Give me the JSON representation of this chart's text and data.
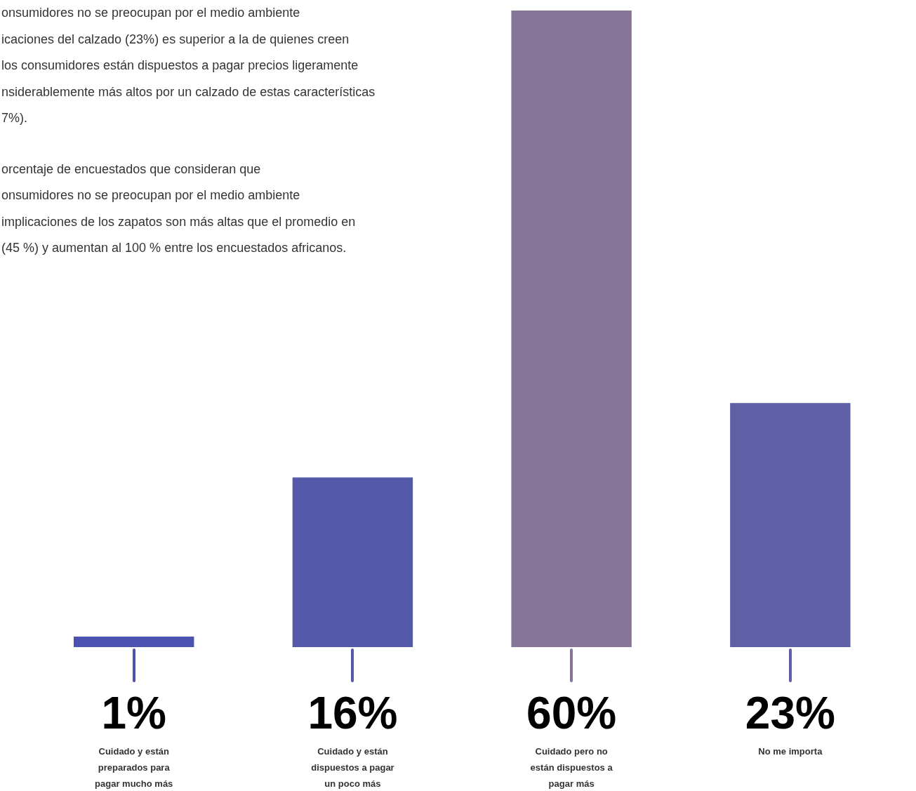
{
  "chart_data": {
    "type": "bar",
    "categories": [
      "Cuidado y están preparados para pagar mucho más",
      "Cuidado y están dispuestos a pagar un poco más",
      "Cuidado pero no están dispuestos a pagar más",
      "No me importa"
    ],
    "values": [
      1,
      16,
      60,
      23
    ],
    "value_labels": [
      "1%",
      "16%",
      "60%",
      "23%"
    ],
    "colors": [
      "#4b52b0",
      "#5559a9",
      "#877499",
      "#5e5fa5"
    ],
    "tick_labels": "x",
    "grid": false,
    "legend": false,
    "annotations": [
      "onsumidores no se preocupan por el medio ambiente\nicaciones del calzado (23%) es superior a la de quienes creen\nlos consumidores están dispuestos a pagar precios ligeramente\nnsiderablemente más altos por un calzado de estas características\n7%).",
      "orcentaje de encuestados que consideran que\nonsumidores no se preocupan por el medio ambiente\nimplicaciones de los zapatos son más altas que el promedio en\n(45 %) y aumentan al 100 % entre los encuestados africanos."
    ]
  }
}
